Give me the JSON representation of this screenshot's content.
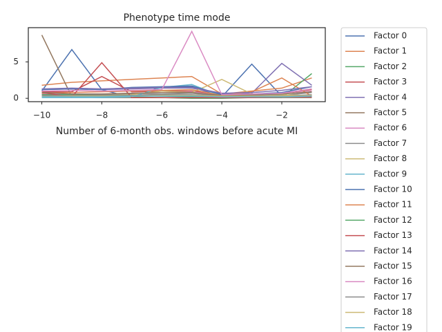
{
  "chart_data": {
    "type": "line",
    "title": "Phenotype time mode",
    "x_label": "Number of 6-month obs. windows before acute MI",
    "x": [
      -10,
      -9,
      -8,
      -7,
      -6,
      -5,
      -4,
      -3,
      -2,
      -1
    ],
    "xlim": [
      -10.45,
      -0.55
    ],
    "xticks": [
      {
        "value": -10,
        "label": "−10"
      },
      {
        "value": -8,
        "label": "−8"
      },
      {
        "value": -6,
        "label": "−6"
      },
      {
        "value": -4,
        "label": "−4"
      },
      {
        "value": -2,
        "label": "−2"
      }
    ],
    "ylim": [
      -0.46,
      9.71
    ],
    "yticks": [
      0,
      5
    ],
    "grid": false,
    "legend": "outside-right",
    "series": [
      {
        "name": "Factor 0",
        "color": "#4C72B0",
        "values": [
          1.0,
          6.7,
          1.2,
          0.1,
          1.6,
          1.6,
          0.2,
          4.7,
          0.3,
          0.2
        ]
      },
      {
        "name": "Factor 1",
        "color": "#DD8452",
        "values": [
          1.8,
          2.2,
          2.4,
          2.6,
          2.8,
          3.0,
          0.6,
          1.0,
          1.4,
          2.8
        ]
      },
      {
        "name": "Factor 2",
        "color": "#55A868",
        "values": [
          0.3,
          0.3,
          0.2,
          0.2,
          0.1,
          0.0,
          0.0,
          0.1,
          0.1,
          3.4
        ]
      },
      {
        "name": "Factor 3",
        "color": "#C44E52",
        "values": [
          0.9,
          0.9,
          3.0,
          0.9,
          1.0,
          1.0,
          0.5,
          0.6,
          0.7,
          1.2
        ]
      },
      {
        "name": "Factor 4",
        "color": "#8172B3",
        "values": [
          1.2,
          1.3,
          1.2,
          1.3,
          1.4,
          1.4,
          0.6,
          0.7,
          4.8,
          1.8
        ]
      },
      {
        "name": "Factor 5",
        "color": "#937860",
        "values": [
          8.7,
          0.2,
          0.1,
          0.1,
          0.1,
          0.1,
          0.1,
          0.1,
          0.1,
          0.1
        ]
      },
      {
        "name": "Factor 6",
        "color": "#DA8BC3",
        "values": [
          0.6,
          0.6,
          0.6,
          0.7,
          0.8,
          0.9,
          0.4,
          0.5,
          0.6,
          1.0
        ]
      },
      {
        "name": "Factor 7",
        "color": "#8C8C8C",
        "values": [
          0.5,
          0.5,
          0.5,
          0.6,
          0.6,
          0.7,
          0.3,
          0.4,
          0.4,
          0.8
        ]
      },
      {
        "name": "Factor 8",
        "color": "#CCB974",
        "values": [
          0.3,
          0.4,
          0.4,
          0.5,
          1.0,
          0.8,
          2.6,
          0.6,
          0.5,
          0.4
        ]
      },
      {
        "name": "Factor 9",
        "color": "#64B5CD",
        "values": [
          0.1,
          0.1,
          0.1,
          0.2,
          1.5,
          1.9,
          0.3,
          0.2,
          0.2,
          0.2
        ]
      },
      {
        "name": "Factor 10",
        "color": "#4C72B0",
        "values": [
          1.2,
          1.3,
          1.2,
          1.5,
          1.6,
          1.7,
          0.5,
          0.6,
          0.8,
          1.6
        ]
      },
      {
        "name": "Factor 11",
        "color": "#DD8452",
        "values": [
          0.7,
          0.8,
          0.9,
          1.0,
          1.1,
          1.2,
          0.4,
          0.9,
          2.8,
          0.3
        ]
      },
      {
        "name": "Factor 12",
        "color": "#55A868",
        "values": [
          0.5,
          0.5,
          0.4,
          0.4,
          0.3,
          0.2,
          0.1,
          0.2,
          0.2,
          0.3
        ]
      },
      {
        "name": "Factor 13",
        "color": "#C44E52",
        "values": [
          0.8,
          0.2,
          4.9,
          0.1,
          0.1,
          0.1,
          0.1,
          0.1,
          0.2,
          0.2
        ]
      },
      {
        "name": "Factor 14",
        "color": "#8172B3",
        "values": [
          1.3,
          1.4,
          1.3,
          1.4,
          1.5,
          1.5,
          0.7,
          0.8,
          1.1,
          1.6
        ]
      },
      {
        "name": "Factor 15",
        "color": "#937860",
        "values": [
          0.8,
          0.6,
          0.6,
          0.7,
          0.8,
          0.8,
          0.4,
          0.5,
          0.6,
          0.9
        ]
      },
      {
        "name": "Factor 16",
        "color": "#DA8BC3",
        "values": [
          1.0,
          1.1,
          1.0,
          1.1,
          1.2,
          9.2,
          0.5,
          0.6,
          0.7,
          1.3
        ]
      },
      {
        "name": "Factor 17",
        "color": "#8C8C8C",
        "values": [
          0.4,
          0.4,
          0.4,
          0.4,
          0.5,
          0.5,
          0.3,
          0.3,
          0.3,
          0.5
        ]
      },
      {
        "name": "Factor 18",
        "color": "#CCB974",
        "values": [
          0.2,
          0.3,
          0.3,
          0.3,
          0.4,
          0.4,
          0.3,
          0.3,
          0.3,
          0.4
        ]
      },
      {
        "name": "Factor 19",
        "color": "#64B5CD",
        "values": [
          0.2,
          0.2,
          0.2,
          0.3,
          0.3,
          0.3,
          0.2,
          0.2,
          0.2,
          0.3
        ]
      }
    ]
  }
}
